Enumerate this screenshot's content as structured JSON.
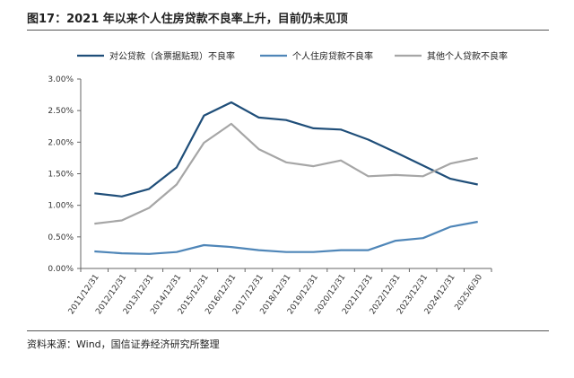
{
  "header": {
    "title": "图17：2021 年以来个人住房贷款不良率上升，目前仍未见顶"
  },
  "footer": {
    "source": "资料来源：Wind，国信证券经济研究所整理"
  },
  "chart_data": {
    "type": "line",
    "categories": [
      "2011/12/31",
      "2012/12/31",
      "2013/12/31",
      "2014/12/31",
      "2015/12/31",
      "2016/12/31",
      "2017/12/31",
      "2018/12/31",
      "2019/12/31",
      "2020/12/31",
      "2021/12/31",
      "2022/12/31",
      "2023/12/31",
      "2024/12/31",
      "2025/6/30"
    ],
    "yticks": [
      "0.00%",
      "0.50%",
      "1.00%",
      "1.50%",
      "2.00%",
      "2.50%",
      "3.00%"
    ],
    "ylim": [
      0,
      3.0
    ],
    "legend_position": "top",
    "grid": false,
    "series": [
      {
        "name": "对公贷款（含票据贴现）不良率",
        "color": "#1f4e79",
        "values": [
          1.19,
          1.14,
          1.26,
          1.6,
          2.42,
          2.63,
          2.39,
          2.35,
          2.22,
          2.2,
          2.04,
          1.84,
          1.63,
          1.42,
          1.33
        ]
      },
      {
        "name": "个人住房贷款不良率",
        "color": "#4f86b8",
        "values": [
          0.27,
          0.24,
          0.23,
          0.26,
          0.37,
          0.34,
          0.29,
          0.26,
          0.26,
          0.29,
          0.29,
          0.44,
          0.48,
          0.66,
          0.74
        ]
      },
      {
        "name": "其他个人贷款不良率",
        "color": "#a6a6a6",
        "values": [
          0.71,
          0.76,
          0.96,
          1.33,
          1.99,
          2.29,
          1.89,
          1.68,
          1.62,
          1.71,
          1.46,
          1.48,
          1.46,
          1.66,
          1.75
        ]
      }
    ]
  }
}
